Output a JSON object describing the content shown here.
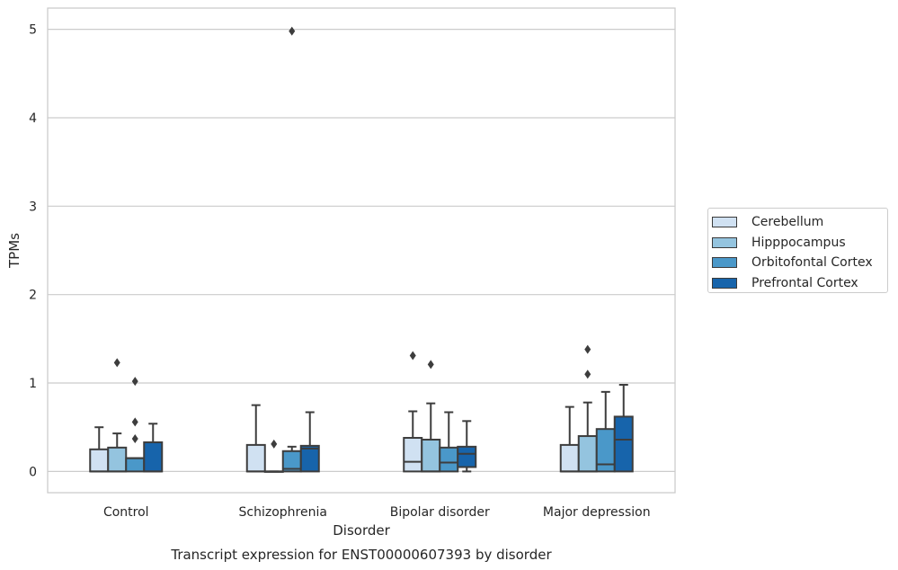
{
  "chart_data": {
    "type": "box",
    "xlabel": "Disorder",
    "ylabel": "TPMs",
    "caption": "Transcript expression for ENST00000607393 by disorder",
    "ylim": [
      -0.24,
      5.24
    ],
    "yticks": [
      0,
      1,
      2,
      3,
      4,
      5
    ],
    "grid": "horizontal",
    "legend_position": "right",
    "categories": [
      "Control",
      "Schizophrenia",
      "Bipolar disorder",
      "Major depression"
    ],
    "series": [
      {
        "name": "Cerebellum",
        "color": "#d0e1f2",
        "boxes": [
          {
            "whisker_low": 0,
            "q1": 0,
            "median": 0,
            "q3": 0.25,
            "whisker_high": 0.5,
            "outliers": []
          },
          {
            "whisker_low": 0,
            "q1": 0,
            "median": 0,
            "q3": 0.3,
            "whisker_high": 0.75,
            "outliers": []
          },
          {
            "whisker_low": 0,
            "q1": 0,
            "median": 0.11,
            "q3": 0.38,
            "whisker_high": 0.68,
            "outliers": [
              1.31
            ]
          },
          {
            "whisker_low": 0,
            "q1": 0,
            "median": 0,
            "q3": 0.3,
            "whisker_high": 0.73,
            "outliers": []
          }
        ]
      },
      {
        "name": "Hipppocampus",
        "color": "#94c4df",
        "boxes": [
          {
            "whisker_low": 0,
            "q1": 0,
            "median": 0,
            "q3": 0.27,
            "whisker_high": 0.43,
            "outliers": [
              1.23
            ]
          },
          {
            "whisker_low": 0,
            "q1": 0,
            "median": 0,
            "q3": 0,
            "whisker_high": 0,
            "outliers": [
              0.31
            ]
          },
          {
            "whisker_low": 0,
            "q1": 0,
            "median": 0,
            "q3": 0.36,
            "whisker_high": 0.77,
            "outliers": [
              1.21
            ]
          },
          {
            "whisker_low": 0,
            "q1": 0,
            "median": 0,
            "q3": 0.4,
            "whisker_high": 0.78,
            "outliers": [
              1.38,
              1.1
            ]
          }
        ]
      },
      {
        "name": "Orbitofontal Cortex",
        "color": "#4a98c9",
        "boxes": [
          {
            "whisker_low": 0,
            "q1": 0,
            "median": 0.15,
            "q3": 0.15,
            "whisker_high": 0.15,
            "outliers": [
              1.02,
              0.56,
              0.37
            ]
          },
          {
            "whisker_low": 0,
            "q1": 0,
            "median": 0.03,
            "q3": 0.23,
            "whisker_high": 0.28,
            "outliers": [
              4.98
            ]
          },
          {
            "whisker_low": 0,
            "q1": 0,
            "median": 0.1,
            "q3": 0.27,
            "whisker_high": 0.67,
            "outliers": []
          },
          {
            "whisker_low": 0,
            "q1": 0,
            "median": 0.08,
            "q3": 0.48,
            "whisker_high": 0.9,
            "outliers": []
          }
        ]
      },
      {
        "name": "Prefrontal Cortex",
        "color": "#1764ab",
        "boxes": [
          {
            "whisker_low": 0,
            "q1": 0,
            "median": 0,
            "q3": 0.33,
            "whisker_high": 0.54,
            "outliers": []
          },
          {
            "whisker_low": 0,
            "q1": 0,
            "median": 0.26,
            "q3": 0.29,
            "whisker_high": 0.67,
            "outliers": []
          },
          {
            "whisker_low": 0,
            "q1": 0.05,
            "median": 0.2,
            "q3": 0.28,
            "whisker_high": 0.57,
            "outliers": []
          },
          {
            "whisker_low": 0,
            "q1": 0,
            "median": 0.36,
            "q3": 0.62,
            "whisker_high": 0.98,
            "outliers": []
          }
        ]
      }
    ]
  }
}
